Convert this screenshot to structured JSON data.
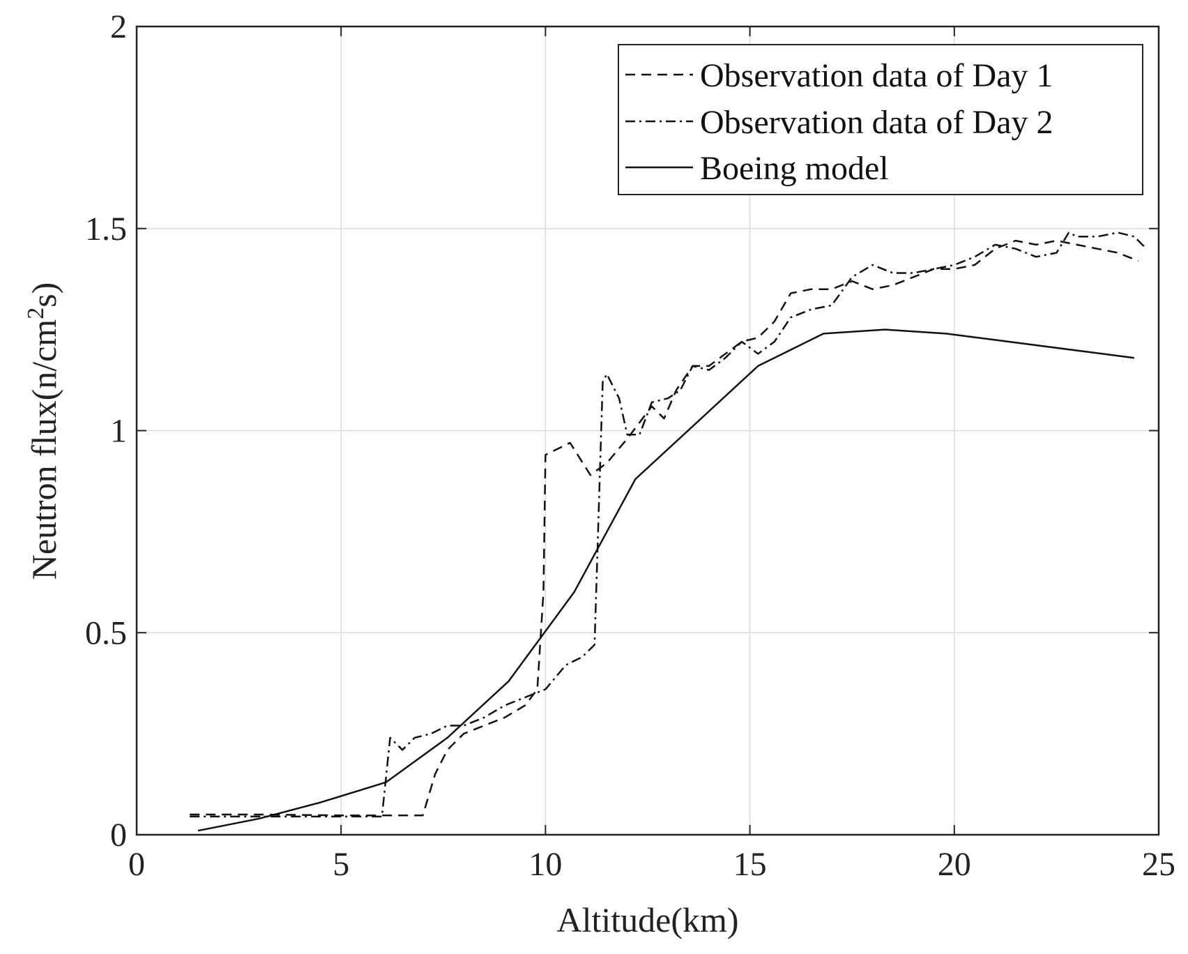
{
  "chart_data": {
    "type": "line",
    "title": "",
    "xlabel": "Altitude(km)",
    "ylabel_main": "Neutron flux(n/cm",
    "ylabel_sup": "2",
    "ylabel_tail": "s)",
    "xlim": [
      0,
      25
    ],
    "ylim": [
      0,
      2
    ],
    "xticks": [
      0,
      5,
      10,
      15,
      20,
      25
    ],
    "xtick_labels": [
      "0",
      "5",
      "10",
      "15",
      "20",
      "25"
    ],
    "yticks": [
      0,
      0.5,
      1,
      1.5,
      2
    ],
    "ytick_labels": [
      "0",
      "0.5",
      "1",
      "1.5",
      "2"
    ],
    "grid": true,
    "legend_position": "top-right",
    "series": [
      {
        "name": "Observation data of Day 1",
        "style": "dashed",
        "x": [
          1.3,
          3.0,
          5.0,
          7.0,
          7.3,
          7.6,
          8.0,
          8.5,
          9.0,
          9.5,
          9.8,
          9.95,
          10.0,
          10.6,
          11.1,
          11.5,
          12.0,
          12.3,
          12.6,
          12.9,
          13.2,
          13.6,
          14.0,
          14.4,
          14.8,
          15.2,
          15.6,
          16.0,
          16.5,
          17.0,
          17.5,
          18.0,
          18.5,
          19.0,
          19.5,
          20.0,
          20.5,
          21.0,
          21.5,
          22.0,
          22.5,
          23.0,
          23.5,
          24.0,
          24.5
        ],
        "y": [
          0.05,
          0.05,
          0.048,
          0.048,
          0.15,
          0.21,
          0.25,
          0.27,
          0.29,
          0.32,
          0.36,
          0.6,
          0.94,
          0.97,
          0.89,
          0.92,
          0.98,
          1.02,
          1.06,
          1.03,
          1.1,
          1.16,
          1.16,
          1.19,
          1.22,
          1.23,
          1.27,
          1.34,
          1.35,
          1.35,
          1.37,
          1.35,
          1.36,
          1.38,
          1.4,
          1.4,
          1.41,
          1.45,
          1.47,
          1.46,
          1.47,
          1.46,
          1.45,
          1.44,
          1.42
        ]
      },
      {
        "name": "Observation data of Day 2",
        "style": "dashdot",
        "x": [
          1.3,
          3.0,
          5.0,
          6.0,
          6.2,
          6.5,
          6.8,
          7.2,
          7.6,
          8.0,
          8.5,
          9.0,
          9.5,
          10.0,
          10.5,
          10.9,
          11.2,
          11.4,
          11.5,
          11.8,
          12.0,
          12.3,
          12.6,
          13.0,
          13.3,
          13.6,
          14.0,
          14.4,
          14.8,
          15.2,
          15.6,
          16.0,
          16.5,
          17.0,
          17.5,
          18.0,
          18.5,
          19.0,
          19.5,
          20.0,
          20.5,
          21.0,
          21.5,
          22.0,
          22.5,
          22.8,
          23.0,
          23.5,
          24.0,
          24.4,
          24.7
        ],
        "y": [
          0.045,
          0.045,
          0.045,
          0.045,
          0.24,
          0.21,
          0.24,
          0.25,
          0.27,
          0.27,
          0.29,
          0.32,
          0.34,
          0.36,
          0.42,
          0.44,
          0.47,
          1.12,
          1.14,
          1.08,
          0.99,
          0.99,
          1.07,
          1.08,
          1.1,
          1.16,
          1.15,
          1.18,
          1.22,
          1.19,
          1.22,
          1.28,
          1.3,
          1.31,
          1.38,
          1.41,
          1.39,
          1.39,
          1.4,
          1.41,
          1.43,
          1.46,
          1.45,
          1.43,
          1.44,
          1.49,
          1.48,
          1.48,
          1.49,
          1.48,
          1.45
        ]
      },
      {
        "name": "Boeing model",
        "style": "solid",
        "x": [
          1.5,
          3.0,
          4.5,
          6.1,
          7.6,
          9.1,
          10.7,
          12.2,
          13.7,
          15.2,
          16.8,
          18.3,
          19.8,
          24.4
        ],
        "y": [
          0.01,
          0.04,
          0.08,
          0.13,
          0.24,
          0.38,
          0.6,
          0.88,
          1.02,
          1.16,
          1.24,
          1.25,
          1.24,
          1.18
        ]
      }
    ]
  }
}
